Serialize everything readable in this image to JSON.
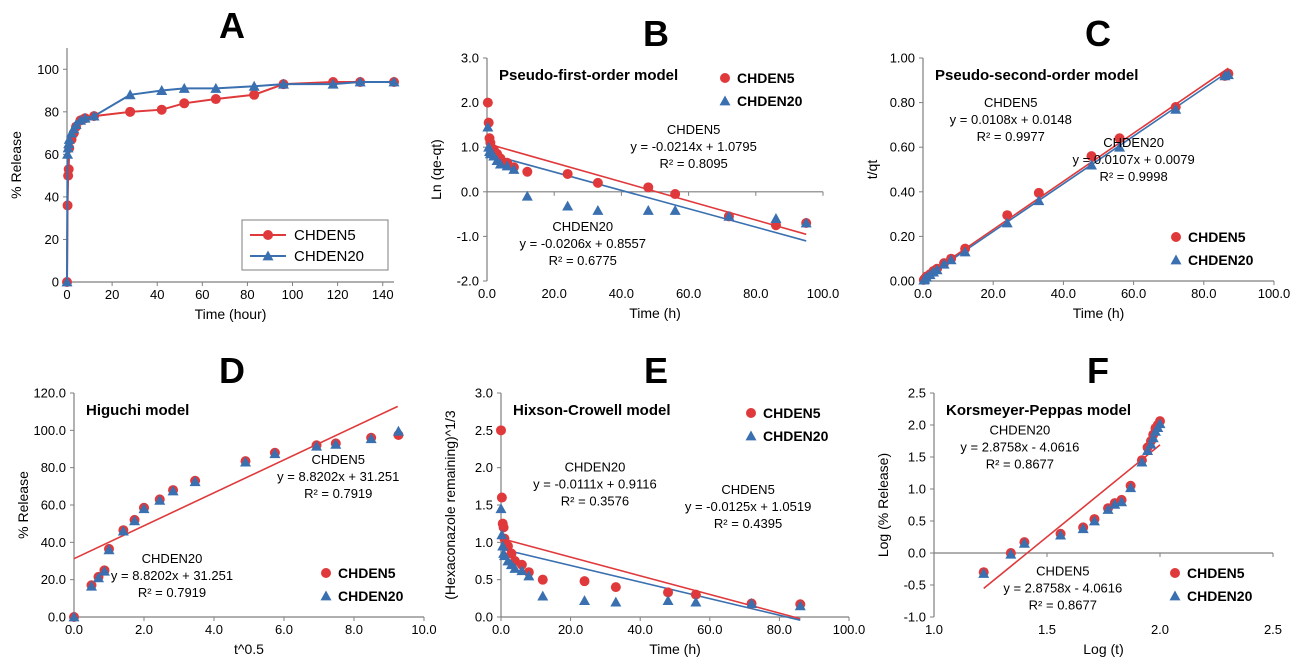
{
  "colors": {
    "series1": "#e0393b",
    "series2": "#3a70b0",
    "axis": "#7f7f7f",
    "text": "#000000"
  },
  "chart_data": [
    {
      "panel_letter": "A",
      "type": "line",
      "title": "",
      "xlabel": "Time (hour)",
      "ylabel": "% Release",
      "xlim": [
        0,
        145
      ],
      "ylim": [
        0,
        110
      ],
      "xticks": [
        0,
        20,
        40,
        60,
        80,
        100,
        120,
        140
      ],
      "yticks": [
        0,
        20,
        40,
        60,
        80,
        100
      ],
      "xtick_labels": [
        "0",
        "20",
        "40",
        "60",
        "80",
        "100",
        "120",
        "140"
      ],
      "ytick_labels": [
        "0",
        "20",
        "40",
        "60",
        "80",
        "100"
      ],
      "legend_position": "bottom-right",
      "series": [
        {
          "name": "CHDEN5",
          "marker": "circle",
          "x": [
            0,
            0.25,
            0.5,
            0.75,
            1,
            2,
            3,
            4,
            6,
            8,
            12,
            28,
            42,
            52,
            66,
            83,
            96,
            118,
            130,
            145
          ],
          "y": [
            0,
            36,
            50,
            53,
            63,
            67,
            70,
            73,
            76,
            77,
            78,
            80,
            81,
            84,
            86,
            88,
            93,
            94,
            94,
            94
          ]
        },
        {
          "name": "CHDEN20",
          "marker": "triangle",
          "x": [
            0,
            0.25,
            0.5,
            0.75,
            1,
            2,
            3,
            4,
            6,
            8,
            12,
            28,
            42,
            52,
            66,
            83,
            96,
            118,
            130,
            145
          ],
          "y": [
            0,
            60,
            63,
            65,
            67,
            70,
            72,
            74,
            76,
            77,
            78,
            88,
            90,
            91,
            91,
            92,
            93,
            93,
            94,
            94
          ]
        }
      ],
      "annotations": []
    },
    {
      "panel_letter": "B",
      "type": "scatter",
      "title": "Pseudo-first-order model",
      "xlabel": "Time (h)",
      "ylabel": "Ln (qe-qt)",
      "xlim": [
        0,
        100
      ],
      "ylim": [
        -2,
        3
      ],
      "xticks": [
        0,
        20,
        40,
        60,
        80,
        100
      ],
      "yticks": [
        -2,
        -1,
        0,
        1,
        2,
        3
      ],
      "xtick_labels": [
        "0.0",
        "20.0",
        "40.0",
        "60.0",
        "80.0",
        "100.0"
      ],
      "ytick_labels": [
        "-2.0",
        "-1.0",
        "0.0",
        "1.0",
        "2.0",
        "3.0"
      ],
      "legend_position": "top-right",
      "series": [
        {
          "name": "CHDEN5",
          "marker": "circle",
          "x": [
            0.25,
            0.5,
            0.75,
            1,
            2,
            3,
            4,
            6,
            8,
            12,
            24,
            33,
            48,
            56,
            72,
            86,
            95
          ],
          "y": [
            2.0,
            1.55,
            1.2,
            1.1,
            0.95,
            0.85,
            0.75,
            0.65,
            0.55,
            0.45,
            0.4,
            0.2,
            0.1,
            -0.05,
            -0.55,
            -0.75,
            -0.7
          ]
        },
        {
          "name": "CHDEN20",
          "marker": "triangle",
          "x": [
            0.25,
            0.5,
            0.75,
            1,
            2,
            3,
            4,
            6,
            8,
            12,
            24,
            33,
            48,
            56,
            72,
            86,
            95
          ],
          "y": [
            1.45,
            1.0,
            0.9,
            0.85,
            0.8,
            0.7,
            0.62,
            0.58,
            0.5,
            -0.1,
            -0.32,
            -0.42,
            -0.42,
            -0.42,
            -0.55,
            -0.6,
            -0.7
          ]
        }
      ],
      "fits": [
        {
          "series": "CHDEN5",
          "slope": -0.0214,
          "intercept": 1.0795,
          "x_range": [
            0,
            95
          ]
        },
        {
          "series": "CHDEN20",
          "slope": -0.0206,
          "intercept": 0.8557,
          "x_range": [
            0,
            95
          ]
        }
      ],
      "annotations": [
        {
          "lines": [
            "CHDEN5",
            "y = -0.0214x + 1.0795",
            "R² = 0.8095"
          ],
          "at": [
            61.5,
            1.3
          ]
        },
        {
          "lines": [
            "CHDEN20",
            "y = -0.0206x + 0.8557",
            "R² = 0.6775"
          ],
          "at": [
            28.5,
            -0.88
          ]
        }
      ]
    },
    {
      "panel_letter": "C",
      "type": "scatter",
      "title": "Pseudo-second-order model",
      "xlabel": "Time (h)",
      "ylabel": "t/qt",
      "xlim": [
        0,
        100
      ],
      "ylim": [
        0,
        1.0
      ],
      "xticks": [
        0,
        20,
        40,
        60,
        80,
        100
      ],
      "yticks": [
        0,
        0.2,
        0.4,
        0.6,
        0.8,
        1.0
      ],
      "xtick_labels": [
        "0.0",
        "20.0",
        "40.0",
        "60.0",
        "80.0",
        "100.0"
      ],
      "ytick_labels": [
        "0.00",
        "0.20",
        "0.40",
        "0.60",
        "0.80",
        "1.00"
      ],
      "legend_position": "bottom-right",
      "series": [
        {
          "name": "CHDEN5",
          "marker": "circle",
          "x": [
            0.25,
            0.5,
            1,
            2,
            3,
            4,
            6,
            8,
            12,
            24,
            33,
            48,
            56,
            72,
            86,
            87
          ],
          "y": [
            0.005,
            0.01,
            0.02,
            0.03,
            0.045,
            0.055,
            0.08,
            0.1,
            0.145,
            0.295,
            0.395,
            0.56,
            0.64,
            0.78,
            0.92,
            0.93
          ]
        },
        {
          "name": "CHDEN20",
          "marker": "triangle",
          "x": [
            0.25,
            0.5,
            1,
            2,
            3,
            4,
            6,
            8,
            12,
            24,
            33,
            48,
            56,
            72,
            86,
            87
          ],
          "y": [
            0.004,
            0.008,
            0.017,
            0.028,
            0.04,
            0.05,
            0.075,
            0.095,
            0.13,
            0.26,
            0.36,
            0.52,
            0.6,
            0.77,
            0.92,
            0.925
          ]
        }
      ],
      "fits": [
        {
          "series": "CHDEN5",
          "slope": 0.0108,
          "intercept": 0.0148,
          "x_range": [
            0,
            87
          ]
        },
        {
          "series": "CHDEN20",
          "slope": 0.0107,
          "intercept": 0.0079,
          "x_range": [
            0,
            87
          ]
        }
      ],
      "annotations": [
        {
          "lines": [
            "CHDEN5",
            "y = 0.0108x + 0.0148",
            "R² = 0.9977"
          ],
          "at": [
            25,
            0.78
          ]
        },
        {
          "lines": [
            "CHDEN20",
            "y = 0.0107x + 0.0079",
            "R² = 0.9998"
          ],
          "at": [
            60,
            0.6
          ]
        }
      ]
    },
    {
      "panel_letter": "D",
      "type": "scatter",
      "title": "Higuchi model",
      "xlabel": "t^0.5",
      "ylabel": "% Release",
      "xlim": [
        0,
        10
      ],
      "ylim": [
        0,
        120
      ],
      "xticks": [
        0,
        2,
        4,
        6,
        8,
        10
      ],
      "yticks": [
        0,
        20,
        40,
        60,
        80,
        100,
        120
      ],
      "xtick_labels": [
        "0.0",
        "2.0",
        "4.0",
        "6.0",
        "8.0",
        "10.0"
      ],
      "ytick_labels": [
        "0.0",
        "20.0",
        "40.0",
        "60.0",
        "80.0",
        "100.0",
        "120.0"
      ],
      "legend_position": "bottom-right",
      "series": [
        {
          "name": "CHDEN5",
          "marker": "circle",
          "x": [
            0,
            0.5,
            0.7,
            0.87,
            1.0,
            1.41,
            1.73,
            2.0,
            2.45,
            2.83,
            3.46,
            4.9,
            5.74,
            6.93,
            7.48,
            8.49,
            9.27
          ],
          "y": [
            0,
            17,
            21.5,
            25,
            36.5,
            46.5,
            52,
            58.5,
            63,
            68,
            73,
            83.5,
            88,
            92,
            93,
            96,
            97.5
          ]
        },
        {
          "name": "CHDEN20",
          "marker": "triangle",
          "x": [
            0,
            0.5,
            0.7,
            0.87,
            1.0,
            1.41,
            1.73,
            2.0,
            2.45,
            2.83,
            3.46,
            4.9,
            5.74,
            6.93,
            7.48,
            8.49,
            9.27
          ],
          "y": [
            0,
            16.5,
            21,
            24.5,
            36,
            46,
            51.5,
            58,
            62.5,
            67.5,
            72.5,
            83,
            87.5,
            91.5,
            92.5,
            95.5,
            99.5
          ]
        }
      ],
      "fits": [
        {
          "series": "CHDEN5",
          "slope": 8.8202,
          "intercept": 31.251,
          "x_range": [
            0,
            9.25
          ]
        }
      ],
      "annotations": [
        {
          "lines": [
            "CHDEN5",
            "y = 8.8202x + 31.251",
            "R² = 0.7919"
          ],
          "at": [
            7.55,
            82
          ]
        },
        {
          "lines": [
            "CHDEN20",
            "y = 8.8202x + 31.251",
            "R² = 0.7919"
          ],
          "at": [
            2.8,
            29
          ]
        }
      ]
    },
    {
      "panel_letter": "E",
      "type": "scatter",
      "title": "Hixson-Crowell model",
      "xlabel": "Time (h)",
      "ylabel": "(Hexaconazole remaining)^1/3",
      "xlim": [
        0,
        100
      ],
      "ylim": [
        0,
        3.0
      ],
      "xticks": [
        0,
        20,
        40,
        60,
        80,
        100
      ],
      "yticks": [
        0,
        0.5,
        1.0,
        1.5,
        2.0,
        2.5,
        3.0
      ],
      "xtick_labels": [
        "0.0",
        "20.0",
        "40.0",
        "60.0",
        "80.0",
        "100.0"
      ],
      "ytick_labels": [
        "0.0",
        "0.5",
        "1.0",
        "1.5",
        "2.0",
        "2.5",
        "3.0"
      ],
      "legend_position": "top-right",
      "series": [
        {
          "name": "CHDEN5",
          "marker": "circle",
          "x": [
            0,
            0.25,
            0.5,
            0.75,
            1,
            2,
            3,
            4,
            6,
            8,
            12,
            24,
            33,
            48,
            56,
            72,
            86
          ],
          "y": [
            2.5,
            1.6,
            1.25,
            1.2,
            1.05,
            0.95,
            0.85,
            0.75,
            0.7,
            0.6,
            0.5,
            0.48,
            0.4,
            0.33,
            0.3,
            0.18,
            0.17
          ]
        },
        {
          "name": "CHDEN20",
          "marker": "triangle",
          "x": [
            0,
            0.25,
            0.5,
            0.75,
            1,
            2,
            3,
            4,
            6,
            8,
            12,
            24,
            33,
            48,
            56,
            72,
            86
          ],
          "y": [
            1.45,
            1.1,
            0.95,
            0.85,
            0.82,
            0.75,
            0.7,
            0.65,
            0.62,
            0.55,
            0.28,
            0.22,
            0.2,
            0.22,
            0.2,
            0.18,
            0.15
          ]
        }
      ],
      "fits": [
        {
          "series": "CHDEN5",
          "slope": -0.0125,
          "intercept": 1.0519,
          "x_range": [
            0,
            86
          ]
        },
        {
          "series": "CHDEN20",
          "slope": -0.0111,
          "intercept": 0.9116,
          "x_range": [
            0,
            86
          ]
        }
      ],
      "annotations": [
        {
          "lines": [
            "CHDEN20",
            "y = -0.0111x + 0.9116",
            "R² = 0.3576"
          ],
          "at": [
            27,
            1.95
          ]
        },
        {
          "lines": [
            "CHDEN5",
            "y = -0.0125x + 1.0519",
            "R² = 0.4395"
          ],
          "at": [
            71,
            1.65
          ]
        }
      ]
    },
    {
      "panel_letter": "F",
      "type": "scatter",
      "title": "Korsmeyer-Peppas model",
      "xlabel": "Log (t)",
      "ylabel": "Log (% Release)",
      "xlim": [
        1.0,
        2.5
      ],
      "ylim": [
        -1.0,
        2.5
      ],
      "xticks": [
        1.0,
        1.5,
        2.0,
        2.5
      ],
      "yticks": [
        -1.0,
        -0.5,
        0,
        0.5,
        1.0,
        1.5,
        2.0,
        2.5
      ],
      "xtick_labels": [
        "1.0",
        "1.5",
        "2.0",
        "2.5"
      ],
      "ytick_labels": [
        "-1.0",
        "-0.5",
        "0.0",
        "0.5",
        "1.0",
        "1.5",
        "2.0",
        "2.5"
      ],
      "legend_position": "bottom-right",
      "series": [
        {
          "name": "CHDEN5",
          "marker": "circle",
          "x": [
            1.22,
            1.34,
            1.4,
            1.56,
            1.66,
            1.71,
            1.77,
            1.8,
            1.83,
            1.87,
            1.92,
            1.945,
            1.96,
            1.97,
            1.98,
            1.99,
            2.0
          ],
          "y": [
            -0.3,
            0.0,
            0.17,
            0.3,
            0.4,
            0.53,
            0.7,
            0.78,
            0.83,
            1.05,
            1.45,
            1.65,
            1.75,
            1.85,
            1.95,
            2.0,
            2.06
          ]
        },
        {
          "name": "CHDEN20",
          "marker": "triangle",
          "x": [
            1.22,
            1.34,
            1.4,
            1.56,
            1.66,
            1.71,
            1.77,
            1.8,
            1.83,
            1.87,
            1.92,
            1.945,
            1.96,
            1.97,
            1.98,
            1.99,
            2.0
          ],
          "y": [
            -0.32,
            -0.02,
            0.15,
            0.28,
            0.38,
            0.5,
            0.68,
            0.76,
            0.8,
            1.02,
            1.42,
            1.6,
            1.7,
            1.8,
            1.9,
            1.96,
            2.02
          ]
        }
      ],
      "fits": [
        {
          "series": "CHDEN5",
          "slope": 2.8758,
          "intercept": -4.0616,
          "x_range": [
            1.22,
            2.0
          ]
        }
      ],
      "annotations": [
        {
          "lines": [
            "CHDEN20",
            "y = 2.8758x - 4.0616",
            "R² = 0.8677"
          ],
          "at": [
            1.38,
            1.85
          ]
        },
        {
          "lines": [
            "CHDEN5",
            "y = 2.8758x - 4.0616",
            "R² = 0.8677"
          ],
          "at": [
            1.57,
            -0.35
          ]
        }
      ]
    }
  ]
}
